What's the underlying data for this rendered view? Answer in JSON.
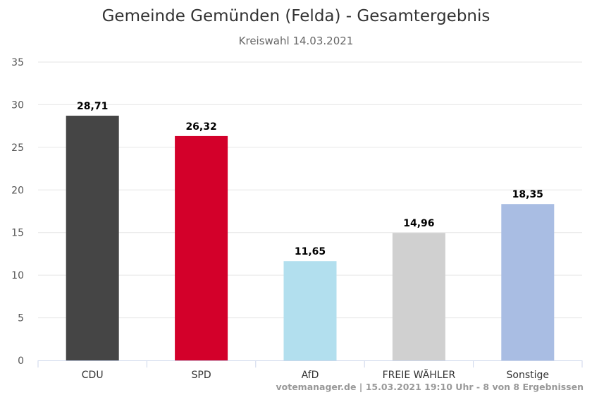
{
  "chart_data": {
    "type": "bar",
    "title": "Gemeinde Gemünden (Felda) - Gesamtergebnis",
    "subtitle": "Kreiswahl 14.03.2021",
    "categories": [
      "CDU",
      "SPD",
      "AfD",
      "FREIE WÄHLER",
      "Sonstige"
    ],
    "values": [
      28.71,
      26.32,
      11.65,
      14.96,
      18.35
    ],
    "value_labels": [
      "28,71",
      "26,32",
      "11,65",
      "14,96",
      "18,35"
    ],
    "colors": [
      "#454545",
      "#d3002a",
      "#b2dfee",
      "#d0d0d0",
      "#a9bde3"
    ],
    "ylim": [
      0,
      35
    ],
    "yticks": [
      0,
      5,
      10,
      15,
      20,
      25,
      30,
      35
    ],
    "grid": true,
    "legend": "none"
  },
  "credits": "votemanager.de | 15.03.2021 19:10 Uhr - 8 von 8 Ergebnissen"
}
